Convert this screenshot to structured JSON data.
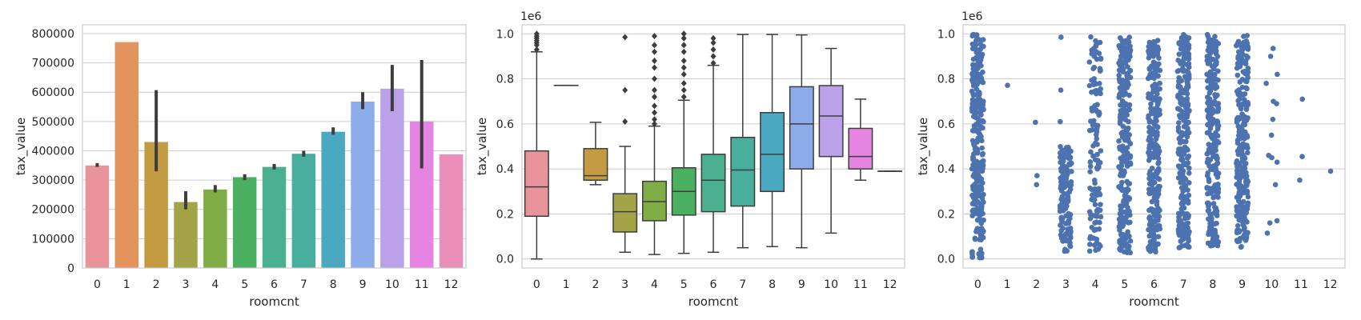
{
  "chart_data": [
    {
      "type": "bar",
      "xlabel": "roomcnt",
      "ylabel": "tax_value",
      "ylim": [
        0,
        830000
      ],
      "yticks": [
        0,
        100000,
        200000,
        300000,
        400000,
        500000,
        600000,
        700000,
        800000
      ],
      "ytick_labels": [
        "0",
        "100000",
        "200000",
        "300000",
        "400000",
        "500000",
        "600000",
        "700000",
        "800000"
      ],
      "categories": [
        "0",
        "1",
        "2",
        "3",
        "4",
        "5",
        "6",
        "7",
        "8",
        "9",
        "10",
        "11",
        "12"
      ],
      "values": [
        350000,
        771000,
        430000,
        225000,
        268000,
        310000,
        345000,
        390000,
        465000,
        568000,
        612000,
        500000,
        388000
      ],
      "error_bars": [
        [
          345000,
          358000
        ],
        [
          771000,
          771000
        ],
        [
          330000,
          607000
        ],
        [
          200000,
          262000
        ],
        [
          258000,
          283000
        ],
        [
          300000,
          320000
        ],
        [
          336000,
          355000
        ],
        [
          380000,
          400000
        ],
        [
          455000,
          480000
        ],
        [
          542000,
          600000
        ],
        [
          535000,
          693000
        ],
        [
          340000,
          710000
        ],
        [
          388000,
          388000
        ]
      ],
      "colors": [
        "#e8949a",
        "#e3935c",
        "#c49a42",
        "#a2a447",
        "#80ad46",
        "#4aaf5e",
        "#4bb08f",
        "#4aae9e",
        "#4aa8c0",
        "#8dacea",
        "#bba1ea",
        "#e684e1",
        "#ea8fba"
      ],
      "grid": "y"
    },
    {
      "type": "box",
      "xlabel": "roomcnt",
      "ylabel": "tax_value",
      "offset_label": "1e6",
      "ylim": [
        -0.04,
        1.04
      ],
      "yticks": [
        0.0,
        0.2,
        0.4,
        0.6,
        0.8,
        1.0
      ],
      "ytick_labels": [
        "0.0",
        "0.2",
        "0.4",
        "0.6",
        "0.8",
        "1.0"
      ],
      "categories": [
        "0",
        "1",
        "2",
        "3",
        "4",
        "5",
        "6",
        "7",
        "8",
        "9",
        "10",
        "11",
        "12"
      ],
      "boxes": [
        {
          "whislo": 0.0,
          "q1": 0.19,
          "med": 0.32,
          "q3": 0.48,
          "whishi": 0.92
        },
        {
          "whislo": 0.771,
          "q1": 0.771,
          "med": 0.771,
          "q3": 0.771,
          "whishi": 0.771
        },
        {
          "whislo": 0.33,
          "q1": 0.35,
          "med": 0.37,
          "q3": 0.49,
          "whishi": 0.607
        },
        {
          "whislo": 0.03,
          "q1": 0.12,
          "med": 0.21,
          "q3": 0.29,
          "whishi": 0.5
        },
        {
          "whislo": 0.02,
          "q1": 0.17,
          "med": 0.255,
          "q3": 0.345,
          "whishi": 0.59
        },
        {
          "whislo": 0.025,
          "q1": 0.195,
          "med": 0.3,
          "q3": 0.405,
          "whishi": 0.705
        },
        {
          "whislo": 0.03,
          "q1": 0.21,
          "med": 0.35,
          "q3": 0.465,
          "whishi": 0.86
        },
        {
          "whislo": 0.05,
          "q1": 0.235,
          "med": 0.395,
          "q3": 0.54,
          "whishi": 0.997
        },
        {
          "whislo": 0.055,
          "q1": 0.3,
          "med": 0.465,
          "q3": 0.65,
          "whishi": 0.997
        },
        {
          "whislo": 0.05,
          "q1": 0.4,
          "med": 0.6,
          "q3": 0.765,
          "whishi": 0.995
        },
        {
          "whislo": 0.115,
          "q1": 0.455,
          "med": 0.635,
          "q3": 0.77,
          "whishi": 0.935
        },
        {
          "whislo": 0.35,
          "q1": 0.4,
          "med": 0.455,
          "q3": 0.58,
          "whishi": 0.71
        },
        {
          "whislo": 0.39,
          "q1": 0.39,
          "med": 0.39,
          "q3": 0.39,
          "whishi": 0.39
        }
      ],
      "fliers": [
        [
          0.93,
          0.95,
          0.96,
          0.97,
          0.98,
          0.99,
          1.0
        ],
        [],
        [],
        [
          0.61,
          0.75,
          0.985
        ],
        [
          0.6,
          0.62,
          0.65,
          0.68,
          0.72,
          0.75,
          0.8,
          0.85,
          0.88,
          0.92,
          0.95,
          0.99
        ],
        [
          0.72,
          0.75,
          0.78,
          0.82,
          0.85,
          0.88,
          0.92,
          0.95,
          0.98,
          1.0
        ],
        [
          0.87,
          0.9,
          0.93,
          0.96,
          0.98
        ],
        [],
        [],
        [],
        [],
        [],
        []
      ],
      "colors": [
        "#e8949a",
        "#e3935c",
        "#c49a42",
        "#a2a447",
        "#80ad46",
        "#4aaf5e",
        "#4bb08f",
        "#4aae9e",
        "#4aa8c0",
        "#8dacea",
        "#bba1ea",
        "#e684e1",
        "#ea8fba"
      ],
      "grid": "y"
    },
    {
      "type": "scatter",
      "xlabel": "roomcnt",
      "ylabel": "tax_value",
      "offset_label": "1e6",
      "ylim": [
        -0.04,
        1.04
      ],
      "yticks": [
        0.0,
        0.2,
        0.4,
        0.6,
        0.8,
        1.0
      ],
      "ytick_labels": [
        "0.0",
        "0.2",
        "0.4",
        "0.6",
        "0.8",
        "1.0"
      ],
      "categories": [
        "0",
        "1",
        "2",
        "3",
        "4",
        "5",
        "6",
        "7",
        "8",
        "9",
        "10",
        "11",
        "12"
      ],
      "strips": [
        {
          "min": 0.0,
          "max": 1.0,
          "density": "dense"
        },
        {
          "points": [
            0.771
          ]
        },
        {
          "points": [
            0.607,
            0.37,
            0.33
          ]
        },
        {
          "min": 0.03,
          "max": 0.5,
          "density": "medium",
          "extra": [
            0.61,
            0.75,
            0.985
          ]
        },
        {
          "min": 0.02,
          "max": 0.99,
          "density": "medium"
        },
        {
          "min": 0.025,
          "max": 1.0,
          "density": "dense"
        },
        {
          "min": 0.03,
          "max": 0.975,
          "density": "dense"
        },
        {
          "min": 0.05,
          "max": 0.997,
          "density": "dense"
        },
        {
          "min": 0.055,
          "max": 0.997,
          "density": "dense"
        },
        {
          "min": 0.05,
          "max": 0.995,
          "density": "dense"
        },
        {
          "points": [
            0.935,
            0.9,
            0.82,
            0.78,
            0.7,
            0.69,
            0.62,
            0.55,
            0.46,
            0.45,
            0.43,
            0.33,
            0.17,
            0.16,
            0.115
          ]
        },
        {
          "points": [
            0.71,
            0.455,
            0.35
          ]
        },
        {
          "points": [
            0.39
          ]
        }
      ],
      "color": "#4c72b0",
      "grid": "y"
    }
  ]
}
